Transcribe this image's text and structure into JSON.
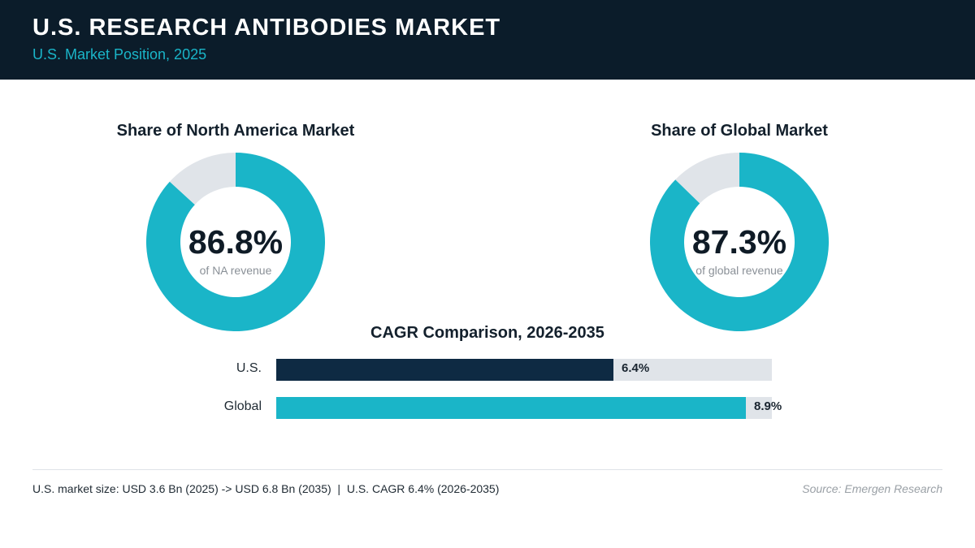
{
  "header": {
    "title": "U.S. RESEARCH ANTIBODIES MARKET",
    "subtitle": "U.S. Market Position, 2025"
  },
  "colors": {
    "header_bg": "#0b1c2a",
    "accent": "#1ab5c8",
    "dark_bar": "#0e2a43",
    "track": "#e0e4e9"
  },
  "chart_data": [
    {
      "type": "pie",
      "title": "Share of North America Market",
      "center_value": "86.8%",
      "center_caption": "of NA revenue",
      "values": [
        86.8,
        13.2
      ],
      "colors": [
        "#1ab5c8",
        "#e0e4e9"
      ]
    },
    {
      "type": "pie",
      "title": "Share of Global Market",
      "center_value": "87.3%",
      "center_caption": "of global revenue",
      "values": [
        87.3,
        12.7
      ],
      "colors": [
        "#1ab5c8",
        "#e0e4e9"
      ]
    },
    {
      "type": "bar",
      "orientation": "horizontal",
      "title": "CAGR Comparison, 2026-2035",
      "categories": [
        "U.S.",
        "Global"
      ],
      "values": [
        6.4,
        8.9
      ],
      "value_labels": [
        "6.4%",
        "8.9%"
      ],
      "colors": [
        "#0e2a43",
        "#1ab5c8"
      ],
      "xlim": [
        0,
        9.4
      ]
    }
  ],
  "footer": {
    "note": "U.S. market size: USD 3.6 Bn (2025) -> USD 6.8 Bn (2035)  |  U.S. CAGR 6.4% (2026-2035)",
    "source": "Source: Emergen Research"
  }
}
